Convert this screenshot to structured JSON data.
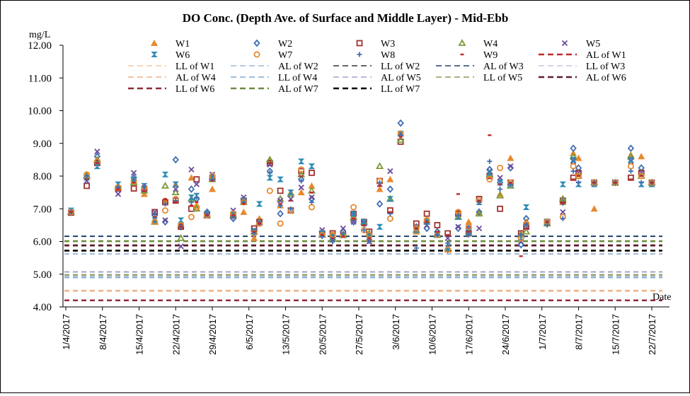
{
  "chart_data": {
    "type": "scatter",
    "title": "DO Conc. (Depth Ave. of Surface and Middle Layer) - Mid-Ebb",
    "ylabel": "mg/L",
    "xlabel": "Date",
    "ylim": [
      4.0,
      12.0
    ],
    "yticks": [
      "4.00",
      "5.00",
      "6.00",
      "7.00",
      "8.00",
      "9.00",
      "10.00",
      "11.00",
      "12.00"
    ],
    "xlim_days": [
      0,
      112
    ],
    "xticks": [
      {
        "label": "1/4/2017",
        "day": 0
      },
      {
        "label": "8/4/2017",
        "day": 7
      },
      {
        "label": "15/4/2017",
        "day": 14
      },
      {
        "label": "22/4/2017",
        "day": 21
      },
      {
        "label": "29/4/2017",
        "day": 28
      },
      {
        "label": "6/5/2017",
        "day": 35
      },
      {
        "label": "13/5/2017",
        "day": 42
      },
      {
        "label": "20/5/2017",
        "day": 49
      },
      {
        "label": "27/5/2017",
        "day": 56
      },
      {
        "label": "3/6/2017",
        "day": 63
      },
      {
        "label": "10/6/2017",
        "day": 70
      },
      {
        "label": "17/6/2017",
        "day": 77
      },
      {
        "label": "24/6/2017",
        "day": 84
      },
      {
        "label": "1/7/2017",
        "day": 91
      },
      {
        "label": "8/7/2017",
        "day": 98
      },
      {
        "label": "15/7/2017",
        "day": 105
      },
      {
        "label": "22/7/2017",
        "day": 112
      }
    ],
    "grid": false,
    "legend_position": "top",
    "sample_days": [
      1,
      4,
      6,
      10,
      13,
      15,
      17,
      19,
      21,
      22,
      24,
      25,
      27,
      28,
      32,
      34,
      36,
      37,
      39,
      41,
      43,
      45,
      47,
      49,
      51,
      53,
      55,
      57,
      58,
      60,
      62,
      64,
      67,
      69,
      71,
      73,
      75,
      77,
      79,
      81,
      83,
      85,
      87,
      88,
      92,
      95,
      97,
      98,
      101,
      105,
      108,
      110,
      112
    ],
    "series": [
      {
        "name": "W1",
        "marker": "triangle-filled",
        "color": "#E7892E",
        "values": [
          6.9,
          8.05,
          8.45,
          7.7,
          7.85,
          7.45,
          6.6,
          7.25,
          7.75,
          6.5,
          7.95,
          7.1,
          6.85,
          7.6,
          6.85,
          6.9,
          6.1,
          6.7,
          8.45,
          7.1,
          7.5,
          7.5,
          7.7,
          6.2,
          6.2,
          6.2,
          6.7,
          6.55,
          6.1,
          7.6,
          7.9,
          9.3,
          6.3,
          6.6,
          6.2,
          5.75,
          6.9,
          6.6,
          6.9,
          8.0,
          7.45,
          8.55,
          6.25,
          6.6,
          6.55,
          7.2,
          8.7,
          8.55,
          7.0,
          7.8,
          8.65,
          8.6,
          7.8
        ]
      },
      {
        "name": "W2",
        "marker": "diamond-open",
        "color": "#3F6FB0",
        "values": [
          6.9,
          7.95,
          8.6,
          7.65,
          7.95,
          7.6,
          6.8,
          6.6,
          8.5,
          6.45,
          7.6,
          7.3,
          6.9,
          8.0,
          6.7,
          7.25,
          6.3,
          6.6,
          8.15,
          6.85,
          6.95,
          7.9,
          7.3,
          6.2,
          6.05,
          6.3,
          6.6,
          6.55,
          6.2,
          7.15,
          7.6,
          9.62,
          6.45,
          6.4,
          6.3,
          5.75,
          6.4,
          6.4,
          6.9,
          8.2,
          7.8,
          8.25,
          5.9,
          6.7,
          6.6,
          7.2,
          8.85,
          8.25,
          7.8,
          7.8,
          8.85,
          8.25,
          7.8
        ]
      },
      {
        "name": "W3",
        "marker": "square-open",
        "color": "#A0322E",
        "values": [
          6.88,
          7.7,
          8.4,
          7.62,
          7.62,
          7.6,
          6.9,
          7.2,
          7.25,
          6.45,
          7.0,
          7.9,
          6.8,
          7.95,
          6.8,
          7.25,
          6.4,
          6.6,
          8.4,
          7.55,
          6.95,
          8.15,
          8.1,
          6.25,
          6.25,
          6.2,
          6.85,
          6.6,
          6.3,
          7.85,
          6.95,
          9.05,
          6.55,
          6.85,
          6.5,
          6.25,
          6.85,
          6.25,
          7.3,
          8.0,
          7.0,
          7.8,
          6.25,
          6.45,
          6.6,
          7.25,
          7.95,
          8.1,
          7.8,
          7.8,
          7.95,
          8.1,
          7.8
        ]
      },
      {
        "name": "W4",
        "marker": "triangle-open",
        "color": "#7F9A3C",
        "values": [
          6.9,
          8.0,
          8.5,
          7.7,
          7.8,
          7.55,
          6.6,
          7.7,
          7.5,
          6.1,
          7.3,
          7.0,
          6.8,
          7.9,
          6.8,
          7.2,
          6.3,
          6.6,
          8.5,
          7.3,
          7.45,
          8.05,
          7.55,
          6.2,
          6.1,
          6.2,
          6.75,
          6.6,
          6.25,
          8.3,
          7.3,
          9.1,
          6.35,
          6.65,
          6.2,
          5.8,
          6.75,
          6.25,
          6.85,
          8.05,
          7.4,
          7.7,
          6.2,
          6.3,
          6.55,
          7.3,
          8.6,
          8.0,
          7.8,
          7.8,
          8.6,
          8.0,
          7.8
        ]
      },
      {
        "name": "W5",
        "marker": "x",
        "color": "#6B4C9A",
        "values": [
          6.9,
          7.85,
          8.75,
          7.45,
          8.1,
          7.6,
          6.9,
          6.65,
          7.6,
          5.85,
          8.2,
          7.75,
          6.8,
          8.05,
          6.95,
          7.35,
          6.35,
          6.55,
          8.35,
          7.25,
          7.3,
          7.65,
          7.35,
          6.35,
          6.05,
          6.4,
          6.6,
          6.55,
          6.0,
          7.75,
          8.15,
          9.3,
          6.4,
          6.5,
          6.2,
          6.1,
          6.45,
          6.4,
          6.4,
          8.15,
          7.95,
          8.3,
          6.0,
          6.5,
          6.6,
          6.9,
          8.45,
          8.1,
          7.8,
          7.8,
          8.45,
          8.1,
          7.8
        ]
      },
      {
        "name": "W6",
        "marker": "hourglass",
        "color": "#2E8BB5",
        "values": [
          6.95,
          7.95,
          8.3,
          7.75,
          7.9,
          7.7,
          6.65,
          8.05,
          7.75,
          6.65,
          7.35,
          7.4,
          6.85,
          7.95,
          6.85,
          7.25,
          6.3,
          7.15,
          7.95,
          7.9,
          7.5,
          8.45,
          8.3,
          6.25,
          6.15,
          6.2,
          6.85,
          6.6,
          6.2,
          6.45,
          7.3,
          9.3,
          6.35,
          6.6,
          6.2,
          5.8,
          6.75,
          6.3,
          7.2,
          8.1,
          7.8,
          7.75,
          6.1,
          7.05,
          6.6,
          7.75,
          8.5,
          7.75,
          7.75,
          7.8,
          8.5,
          7.75,
          7.75
        ]
      },
      {
        "name": "W7",
        "marker": "circle-open",
        "color": "#E7892E",
        "values": [
          6.9,
          8.05,
          8.45,
          7.65,
          7.85,
          7.65,
          6.6,
          6.95,
          7.3,
          6.5,
          6.75,
          7.05,
          6.8,
          8.0,
          6.85,
          7.2,
          6.25,
          6.55,
          7.55,
          6.55,
          6.95,
          8.2,
          7.05,
          6.2,
          6.2,
          6.2,
          7.05,
          6.35,
          6.2,
          7.85,
          6.7,
          9.3,
          6.4,
          6.65,
          6.2,
          5.75,
          6.9,
          6.45,
          7.25,
          7.9,
          8.25,
          7.8,
          6.1,
          6.55,
          6.6,
          6.75,
          8.3,
          8.0,
          7.8,
          7.8,
          8.3,
          8.0,
          7.8
        ]
      },
      {
        "name": "W8",
        "marker": "plus",
        "color": "#3F6FB0",
        "values": [
          6.9,
          8.0,
          8.4,
          7.65,
          7.9,
          7.7,
          6.85,
          7.15,
          7.25,
          6.45,
          7.2,
          7.35,
          6.85,
          7.9,
          6.75,
          7.2,
          6.25,
          6.6,
          8.1,
          7.1,
          7.0,
          7.85,
          7.2,
          6.15,
          6.0,
          6.25,
          6.85,
          6.35,
          6.0,
          7.8,
          6.85,
          9.25,
          5.8,
          6.55,
          6.2,
          5.95,
          6.8,
          6.2,
          7.2,
          8.45,
          7.6,
          7.75,
          6.2,
          6.5,
          6.5,
          6.7,
          8.15,
          7.8,
          7.8,
          7.8,
          8.15,
          7.8,
          7.8
        ]
      },
      {
        "name": "W9",
        "marker": "dash",
        "color": "#C0282A",
        "values": [
          6.9,
          7.9,
          8.4,
          7.6,
          7.8,
          7.55,
          6.75,
          7.3,
          7.2,
          6.45,
          7.1,
          7.2,
          6.8,
          7.85,
          6.8,
          7.15,
          6.3,
          6.55,
          8.4,
          7.15,
          7.25,
          8.0,
          7.5,
          6.2,
          6.1,
          6.15,
          6.7,
          6.5,
          6.1,
          7.7,
          6.9,
          9.2,
          6.4,
          6.6,
          6.3,
          6.2,
          7.45,
          6.3,
          7.25,
          9.25,
          7.75,
          7.8,
          5.55,
          6.4,
          6.6,
          7.2,
          7.9,
          8.0,
          7.8,
          7.8,
          7.9,
          8.0,
          7.8
        ]
      }
    ],
    "reference_lines": [
      {
        "name": "AL of W1",
        "value": 5.88,
        "color": "#C0282A",
        "weight": "bold"
      },
      {
        "name": "LL of W1",
        "value": 4.48,
        "color": "#F4C9A0",
        "weight": "normal"
      },
      {
        "name": "AL of W2",
        "value": 5.62,
        "color": "#9DBBD9",
        "weight": "normal"
      },
      {
        "name": "LL of W2",
        "value": 5.72,
        "color": "#333333",
        "weight": "normal"
      },
      {
        "name": "AL of W3",
        "value": 6.16,
        "color": "#1F3F6E",
        "weight": "normal"
      },
      {
        "name": "LL of W3",
        "value": 4.95,
        "color": "#BFC7DD",
        "weight": "normal"
      },
      {
        "name": "AL of W4",
        "value": 4.5,
        "color": "#F0B48A",
        "weight": "normal"
      },
      {
        "name": "LL of W4",
        "value": 4.9,
        "color": "#7FA8D0",
        "weight": "normal"
      },
      {
        "name": "AL of W5",
        "value": 5.07,
        "color": "#A6A0C8",
        "weight": "normal"
      },
      {
        "name": "LL of W5",
        "value": 4.98,
        "color": "#8C9A5A",
        "weight": "normal"
      },
      {
        "name": "AL of W6",
        "value": 5.88,
        "color": "#5A1E2A",
        "weight": "bold"
      },
      {
        "name": "LL of W6",
        "value": 4.2,
        "color": "#8E2A35",
        "weight": "bold"
      },
      {
        "name": "AL of W7",
        "value": 6.01,
        "color": "#6E8B3D",
        "weight": "bold"
      },
      {
        "name": "LL of W7",
        "value": 5.72,
        "color": "#000000",
        "weight": "bold"
      }
    ]
  }
}
